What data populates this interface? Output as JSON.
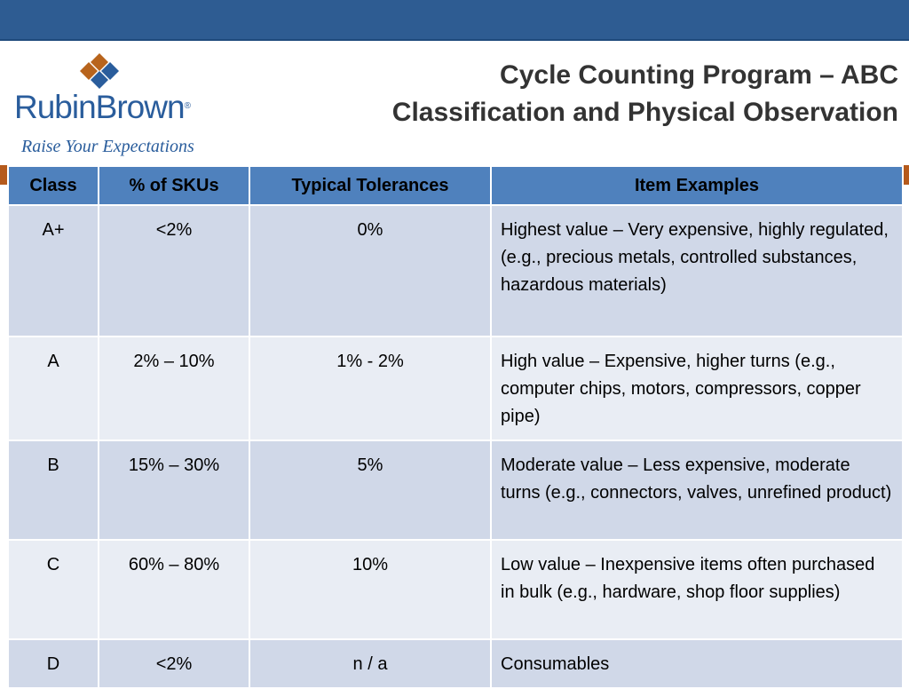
{
  "header": {
    "brand": {
      "name": "RubinBrown",
      "registered_mark": "®",
      "tagline": "Raise Your Expectations",
      "mark_colors": [
        "#b8641c",
        "#2a5d9c"
      ]
    },
    "title_line1": "Cycle Counting Program – ABC",
    "title_line2": "Classification and Physical Observation"
  },
  "colors": {
    "top_bar": "#2e5c92",
    "accent_bar": "#b55a1c",
    "table_header": "#4f81bd",
    "row_dark": "#d0d8e8",
    "row_light": "#e9edf4"
  },
  "table": {
    "headers": [
      "Class",
      "% of SKUs",
      "Typical Tolerances",
      "Item Examples"
    ],
    "rows": [
      {
        "class": "A+",
        "skus": "<2%",
        "tolerance": "0%",
        "examples": "Highest value – Very expensive, highly regulated, (e.g., precious metals, controlled substances, hazardous materials)"
      },
      {
        "class": "A",
        "skus": "2% – 10%",
        "tolerance": "1% - 2%",
        "examples": "High value – Expensive, higher turns (e.g., computer chips, motors, compressors, copper pipe)"
      },
      {
        "class": "B",
        "skus": "15% – 30%",
        "tolerance": "5%",
        "examples": "Moderate value – Less expensive, moderate turns (e.g., connectors, valves, unrefined product)"
      },
      {
        "class": "C",
        "skus": "60% – 80%",
        "tolerance": "10%",
        "examples": "Low value – Inexpensive items often purchased in bulk (e.g., hardware, shop floor supplies)"
      },
      {
        "class": "D",
        "skus": "<2%",
        "tolerance": "n / a",
        "examples": "Consumables"
      }
    ]
  }
}
